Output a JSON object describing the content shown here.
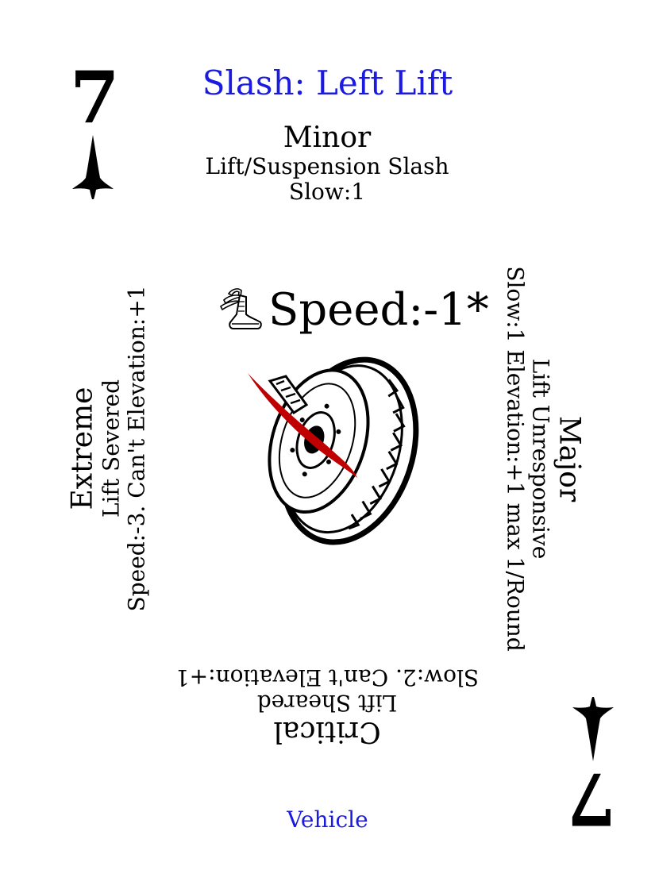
{
  "card": {
    "rank": "7",
    "title": "Slash: Left Lift",
    "footer": "Vehicle",
    "speed": "Speed:-1*",
    "colors": {
      "title": "#1a1ae0",
      "blade": "#c00000"
    },
    "icons": {
      "suit": "spade-blade-icon",
      "boot": "winged-boot-icon",
      "art": "tire-slash-icon"
    }
  },
  "minor": {
    "label": "Minor",
    "line1": "Lift/Suspension Slash",
    "line2": "Slow:1"
  },
  "major": {
    "label": "Major",
    "line1": "Lift Unresponsive",
    "line2": "Slow:1 Elevation:+1 max 1/Round"
  },
  "critical": {
    "label": "Critical",
    "line1": "Lift Sheared",
    "line2": "Slow:2. Can't Elevation:+1"
  },
  "extreme": {
    "label": "Extreme",
    "line1": "Lift Severed",
    "line2": "Speed:-3. Can't Elevation:+1"
  }
}
